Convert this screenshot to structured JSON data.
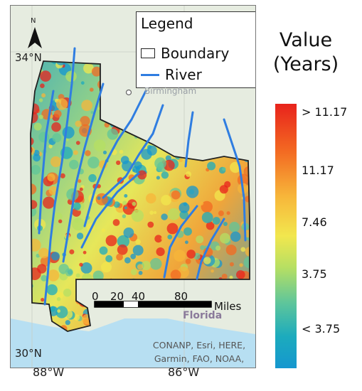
{
  "legend": {
    "title": "Legend",
    "items": [
      {
        "label": "Boundary",
        "symbol": "box"
      },
      {
        "label": "River",
        "symbol": "line",
        "color": "#2f7de1"
      }
    ]
  },
  "north_arrow": {
    "letter": "N"
  },
  "latitudes": {
    "top": "34°N",
    "bottom": "30°N"
  },
  "longitudes": {
    "left": "88°W",
    "right": "86°W"
  },
  "city": "Birmingham",
  "scale_bar": {
    "ticks": [
      "0",
      "20",
      "40",
      "80"
    ],
    "unit": "Miles"
  },
  "region_label": "Florida",
  "attribution": "CONANP, Esri, HERE, Garmin, FAO, NOAA, USGS, EPA",
  "colorbar": {
    "title_line1": "Value",
    "title_line2": "(Years)",
    "labels": [
      "> 11.17",
      "11.17",
      "7.46",
      "3.75",
      "< 3.75"
    ],
    "colors": [
      "#e8231c",
      "#f36a22",
      "#f7b63a",
      "#f2e74e",
      "#b6df63",
      "#60c69a",
      "#1cabbd",
      "#1597cf"
    ]
  },
  "colors": {
    "river": "#2f7de1",
    "boundary": "#222222",
    "water": "#b7dff2",
    "land": "#e6ece0"
  }
}
